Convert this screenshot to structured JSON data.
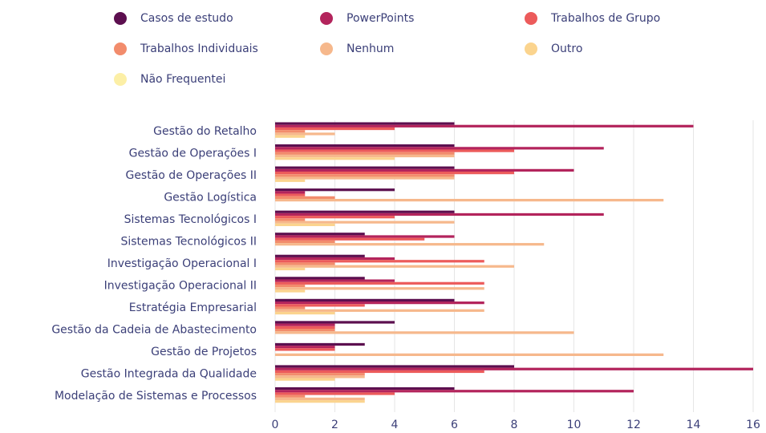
{
  "chart_data": {
    "type": "hbar",
    "categories": [
      "Gestão do Retalho",
      "Gestão de Operações I",
      "Gestão de Operações II",
      "Gestão Logística",
      "Sistemas Tecnológicos I",
      "Sistemas Tecnológicos II",
      "Investigação Operacional I",
      "Investigação Operacional II",
      "Estratégia Empresarial",
      "Gestão da Cadeia de Abastecimento",
      "Gestão de Projetos",
      "Gestão Integrada da Qualidade",
      "Modelação de Sistemas e Processos"
    ],
    "series": [
      {
        "name": "Casos de estudo",
        "color": "#5c0f4f",
        "values": [
          6,
          6,
          6,
          4,
          6,
          3,
          3,
          3,
          6,
          4,
          3,
          8,
          6
        ]
      },
      {
        "name": "PowerPoints",
        "color": "#b3245c",
        "values": [
          14,
          11,
          10,
          1,
          11,
          6,
          4,
          4,
          7,
          2,
          2,
          16,
          12
        ]
      },
      {
        "name": "Trabalhos de Grupo",
        "color": "#ec5b5b",
        "values": [
          4,
          8,
          8,
          1,
          4,
          5,
          7,
          7,
          3,
          2,
          2,
          7,
          4
        ]
      },
      {
        "name": "Trabalhos Individuais",
        "color": "#f28c6c",
        "values": [
          1,
          6,
          6,
          2,
          1,
          2,
          2,
          1,
          1,
          2,
          0,
          3,
          1
        ]
      },
      {
        "name": "Nenhum",
        "color": "#f6b88c",
        "values": [
          2,
          6,
          6,
          13,
          6,
          9,
          8,
          7,
          7,
          10,
          13,
          3,
          3
        ]
      },
      {
        "name": "Outro",
        "color": "#fbd48e",
        "values": [
          1,
          4,
          1,
          0,
          2,
          0,
          1,
          1,
          2,
          0,
          0,
          2,
          3
        ]
      },
      {
        "name": "Não Frequentei",
        "color": "#fcefa6",
        "values": [
          0,
          0,
          0,
          0,
          0,
          0,
          0,
          0,
          0,
          0,
          0,
          0,
          0
        ]
      }
    ],
    "xlim": [
      0,
      16
    ],
    "xticks": [
      0,
      2,
      4,
      6,
      8,
      10,
      12,
      14,
      16
    ],
    "grid": true
  }
}
